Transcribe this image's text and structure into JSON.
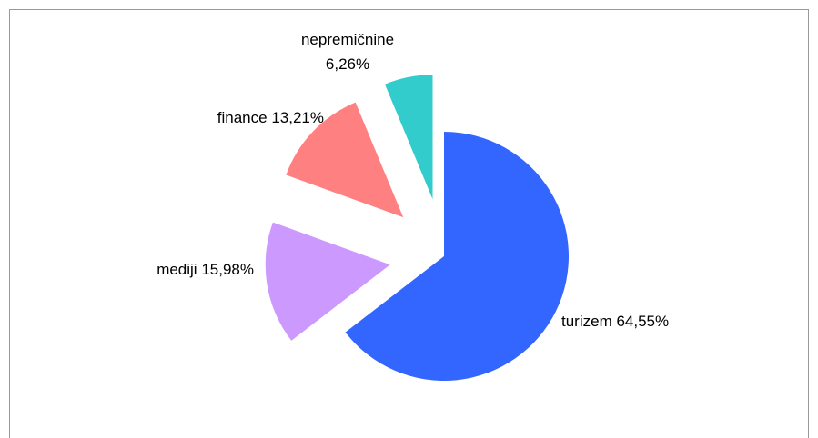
{
  "chart_data": {
    "type": "pie",
    "categories": [
      "turizem",
      "mediji",
      "finance",
      "nepremičnine"
    ],
    "values": [
      64.55,
      15.98,
      13.21,
      6.26
    ],
    "value_labels": [
      "64,55%",
      "15,98%",
      "13,21%",
      "6,26%"
    ],
    "colors": [
      "#3366ff",
      "#cc99ff",
      "#ff8080",
      "#33cccc"
    ]
  }
}
